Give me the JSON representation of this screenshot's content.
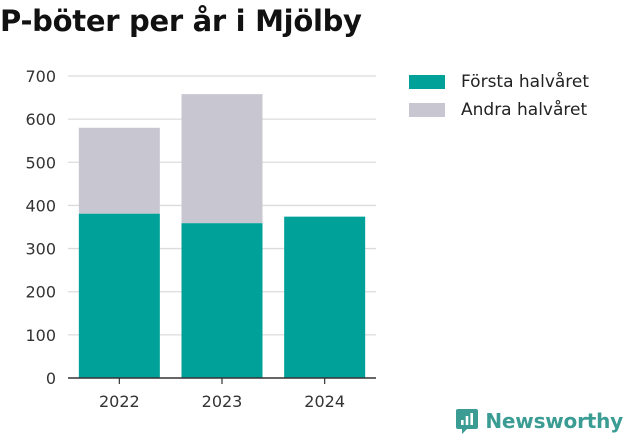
{
  "chart_data": {
    "type": "bar",
    "stacked": true,
    "title": "P-böter per år i Mjölby",
    "xlabel": "",
    "ylabel": "",
    "categories": [
      "2022",
      "2023",
      "2024"
    ],
    "series": [
      {
        "name": "Första halvåret",
        "values": [
          381,
          359,
          374
        ],
        "color": "#00a199"
      },
      {
        "name": "Andra halvåret",
        "values": [
          199,
          299,
          0
        ],
        "color": "#c8c7d1"
      }
    ],
    "ylim": [
      0,
      700
    ],
    "yticks": [
      0,
      100,
      200,
      300,
      400,
      500,
      600,
      700
    ],
    "grid": true,
    "legend_position": "top-right"
  },
  "branding": {
    "name": "Newsworthy",
    "color": "#3a9c93",
    "icon": "newsworthy-logo-icon"
  }
}
